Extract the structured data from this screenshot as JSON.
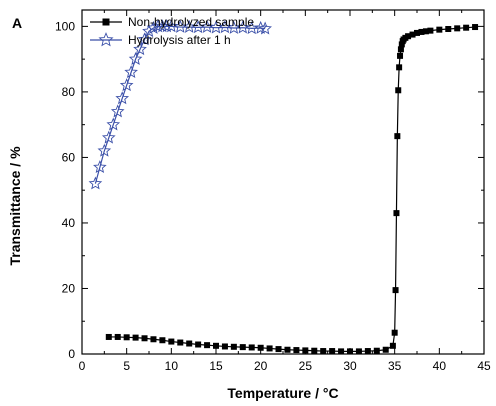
{
  "panel_label": "A",
  "chart_data": {
    "type": "scatter",
    "xlabel": "Temperature / °C",
    "ylabel": "Transmittance / %",
    "xlim": [
      0,
      45
    ],
    "ylim": [
      0,
      105
    ],
    "xticks": [
      0,
      5,
      10,
      15,
      20,
      25,
      30,
      35,
      40,
      45
    ],
    "yticks": [
      0,
      20,
      40,
      60,
      80,
      100
    ],
    "grid": false,
    "legend_position": "top-left",
    "series": [
      {
        "name": "Non-hydrolyzed sample",
        "color": "#000000",
        "marker": "square",
        "x": [
          3,
          4,
          5,
          6,
          7,
          8,
          9,
          10,
          11,
          12,
          13,
          14,
          15,
          16,
          17,
          18,
          19,
          20,
          21,
          22,
          23,
          24,
          25,
          26,
          27,
          28,
          29,
          30,
          31,
          32,
          33,
          34,
          34.8,
          35.0,
          35.1,
          35.2,
          35.3,
          35.4,
          35.5,
          35.6,
          35.7,
          35.8,
          35.9,
          36.0,
          36.2,
          36.5,
          37,
          37.5,
          38,
          38.5,
          39,
          40,
          41,
          42,
          43,
          44
        ],
        "y": [
          5.2,
          5.2,
          5.1,
          5.0,
          4.8,
          4.5,
          4.2,
          3.8,
          3.5,
          3.2,
          2.9,
          2.7,
          2.5,
          2.3,
          2.2,
          2.1,
          2.0,
          1.9,
          1.7,
          1.5,
          1.3,
          1.2,
          1.1,
          1.0,
          0.9,
          0.9,
          0.8,
          0.8,
          0.8,
          0.9,
          1.0,
          1.3,
          2.5,
          6.5,
          19.5,
          43,
          66.5,
          80.5,
          87.5,
          91,
          93,
          94.5,
          95.5,
          96,
          96.5,
          97,
          97.5,
          98,
          98.3,
          98.5,
          98.7,
          99,
          99.2,
          99.4,
          99.6,
          99.8
        ]
      },
      {
        "name": "Hydrolysis after 1 h",
        "color": "#3a4fa8",
        "marker": "star",
        "x": [
          1.5,
          2,
          2.5,
          3,
          3.5,
          4,
          4.5,
          5,
          5.5,
          6,
          6.5,
          7,
          7.5,
          8,
          8.5,
          9,
          9.5,
          10,
          11,
          12,
          13,
          14,
          15,
          16,
          17,
          18,
          19,
          20,
          20.5
        ],
        "y": [
          52,
          57,
          62,
          66,
          70,
          74,
          78,
          82,
          86,
          90,
          93,
          96,
          98.5,
          99.5,
          100,
          100,
          100,
          100,
          99.8,
          99.8,
          99.7,
          99.8,
          99.6,
          99.7,
          99.5,
          99.6,
          99.4,
          99.5,
          99.3
        ]
      }
    ]
  }
}
